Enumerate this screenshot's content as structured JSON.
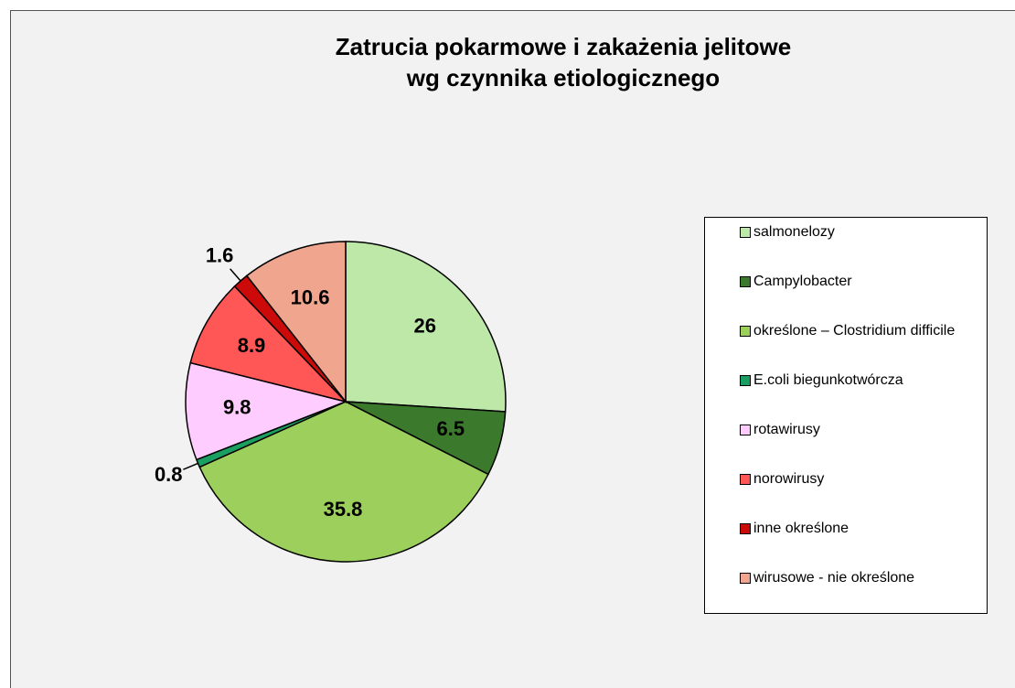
{
  "chart_data": {
    "type": "pie",
    "title": [
      "Zatrucia pokarmowe i zakażenia jelitowe",
      "wg czynnika etiologicznego"
    ],
    "categories": [
      "salmonelozy",
      "Campylobacter",
      "określone – Clostridium difficile",
      "E.coli biegunkotwórcza",
      "rotawirusy",
      "norowirusy",
      "inne określone",
      "wirusowe - nie określone"
    ],
    "values": [
      26,
      6.5,
      35.8,
      0.8,
      9.8,
      8.9,
      1.6,
      10.6
    ],
    "colors": [
      "#bde8a8",
      "#3b7a2c",
      "#9ccf5c",
      "#1a9e62",
      "#ffccff",
      "#ff5656",
      "#cc0a0a",
      "#f0a58e"
    ],
    "legend": "right"
  }
}
